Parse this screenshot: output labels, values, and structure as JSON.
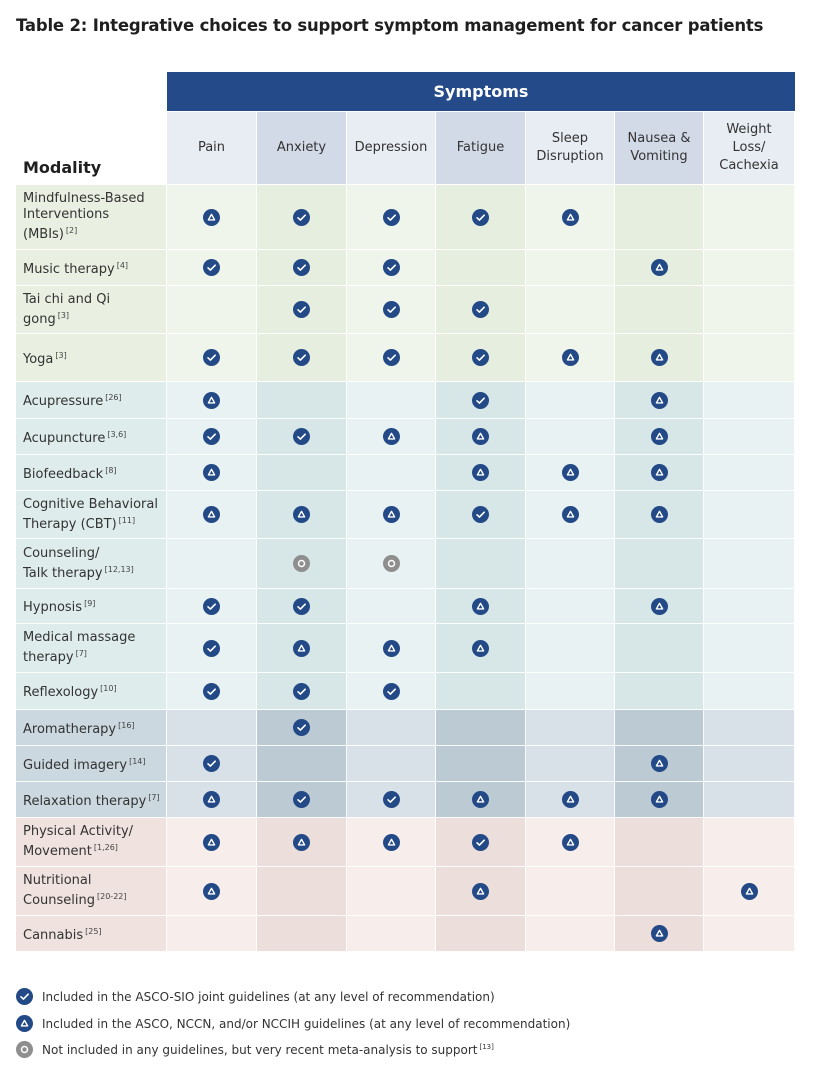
{
  "title": "Table 2: Integrative choices to support symptom management for cancer patients",
  "header": {
    "group_label": "Symptoms",
    "modality_label": "Modality",
    "columns": [
      "Pain",
      "Anxiety",
      "Depression",
      "Fatigue",
      "Sleep\nDisruption",
      "Nausea &\nVomiting",
      "Weight\nLoss/\nCachexia"
    ]
  },
  "colors": {
    "band": "#244a8a",
    "icon_blue": "#234a87",
    "icon_gray": "#8e8e8e",
    "header_light": "#e8ecf3",
    "header_dark": "#d3dae7",
    "groups": {
      "green": {
        "light": "#f0f5ec",
        "dark": "#e6eedf",
        "mod": "#e9f0e2"
      },
      "teal": {
        "light": "#e8f2f3",
        "dark": "#d7e7e8",
        "mod": "#dfecec"
      },
      "gray": {
        "light": "#d7e1e7",
        "dark": "#bccbd3",
        "mod": "#cbd8df"
      },
      "pink": {
        "light": "#f7eeeb",
        "dark": "#ecdeda",
        "mod": "#f0e3df"
      }
    }
  },
  "icon_types": {
    "check": "check-circle-icon",
    "triangle": "triangle-circle-icon",
    "ring": "ring-circle-icon"
  },
  "rows": [
    {
      "name": "Mindfulness-Based\nInterventions\n(MBIs)",
      "ref": "[2]",
      "group": "green",
      "cells": [
        "triangle",
        "check",
        "check",
        "check",
        "triangle",
        "",
        ""
      ]
    },
    {
      "name": "Music therapy",
      "ref": "[4]",
      "group": "green",
      "cells": [
        "check",
        "check",
        "check",
        "",
        "",
        "triangle",
        ""
      ]
    },
    {
      "name": "Tai chi and Qi\ngong",
      "ref": "[3]",
      "group": "green",
      "cells": [
        "",
        "check",
        "check",
        "check",
        "",
        "",
        ""
      ]
    },
    {
      "name": "Yoga",
      "ref": "[3]",
      "group": "green",
      "cells": [
        "check",
        "check",
        "check",
        "check",
        "triangle",
        "triangle",
        ""
      ]
    },
    {
      "name": "Acupressure",
      "ref": "[26]",
      "group": "teal",
      "cells": [
        "triangle",
        "",
        "",
        "check",
        "",
        "triangle",
        ""
      ]
    },
    {
      "name": "Acupuncture",
      "ref": "[3,6]",
      "group": "teal",
      "cells": [
        "check",
        "check",
        "triangle",
        "triangle",
        "",
        "triangle",
        ""
      ]
    },
    {
      "name": "Biofeedback",
      "ref": "[8]",
      "group": "teal",
      "cells": [
        "triangle",
        "",
        "",
        "triangle",
        "triangle",
        "triangle",
        ""
      ]
    },
    {
      "name": "Cognitive Behavioral\nTherapy (CBT)",
      "ref": "[11]",
      "group": "teal",
      "cells": [
        "triangle",
        "triangle",
        "triangle",
        "check",
        "triangle",
        "triangle",
        ""
      ]
    },
    {
      "name": "Counseling/\nTalk therapy",
      "ref": "[12,13]",
      "group": "teal",
      "cells": [
        "",
        "ring",
        "ring",
        "",
        "",
        "",
        ""
      ]
    },
    {
      "name": "Hypnosis",
      "ref": "[9]",
      "group": "teal",
      "cells": [
        "check",
        "check",
        "",
        "triangle",
        "",
        "triangle",
        ""
      ]
    },
    {
      "name": "Medical massage\ntherapy",
      "ref": "[7]",
      "group": "teal",
      "cells": [
        "check",
        "triangle",
        "triangle",
        "triangle",
        "",
        "",
        ""
      ]
    },
    {
      "name": "Reflexology",
      "ref": "[10]",
      "group": "teal",
      "cells": [
        "check",
        "check",
        "check",
        "",
        "",
        "",
        ""
      ]
    },
    {
      "name": "Aromatherapy",
      "ref": "[16]",
      "group": "gray",
      "cells": [
        "",
        "check",
        "",
        "",
        "",
        "",
        ""
      ]
    },
    {
      "name": "Guided imagery",
      "ref": "[14]",
      "group": "gray",
      "cells": [
        "check",
        "",
        "",
        "",
        "",
        "triangle",
        ""
      ]
    },
    {
      "name": "Relaxation therapy",
      "ref": "[7]",
      "group": "gray",
      "cells": [
        "triangle",
        "check",
        "check",
        "triangle",
        "triangle",
        "triangle",
        ""
      ]
    },
    {
      "name": "Physical Activity/\nMovement",
      "ref": "[1,26]",
      "group": "pink",
      "cells": [
        "triangle",
        "triangle",
        "triangle",
        "check",
        "triangle",
        "",
        ""
      ]
    },
    {
      "name": "Nutritional\nCounseling",
      "ref": "[20-22]",
      "group": "pink",
      "cells": [
        "triangle",
        "",
        "",
        "triangle",
        "",
        "",
        "triangle"
      ]
    },
    {
      "name": "Cannabis",
      "ref": "[25]",
      "group": "pink",
      "cells": [
        "",
        "",
        "",
        "",
        "",
        "triangle",
        ""
      ]
    }
  ],
  "legend": [
    {
      "icon": "check",
      "text": "Included in the ASCO-SIO joint guidelines (at any level of recommendation)",
      "ref": ""
    },
    {
      "icon": "triangle",
      "text": "Included in the ASCO, NCCN, and/or NCCIH guidelines (at any level of recommendation)",
      "ref": ""
    },
    {
      "icon": "ring",
      "text": "Not included in any guidelines, but very recent meta-analysis to support",
      "ref": "[13]"
    }
  ]
}
